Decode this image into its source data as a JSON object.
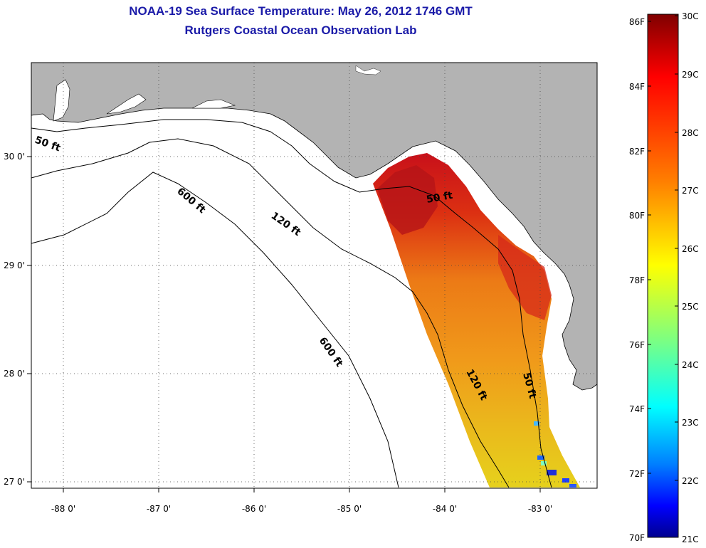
{
  "title": {
    "line1": "NOAA-19 Sea Surface Temperature:  May 26, 2012 1746 GMT",
    "line2": "Rutgers Coastal Ocean Observation Lab"
  },
  "map": {
    "lon_ticks": [
      "-88 0'",
      "-87 0'",
      "-86 0'",
      "-85 0'",
      "-84 0'",
      "-83 0'"
    ],
    "lat_ticks": [
      "30 0'",
      "29 0'",
      "28 0'",
      "27 0'"
    ],
    "contour_labels": {
      "c50_west": "50 ft",
      "c600_north": "600 ft",
      "c120_north": "120 ft",
      "c50_bigbend": "50 ft",
      "c600_south": "600 ft",
      "c120_south": "120 ft",
      "c50_south": "50 ft"
    },
    "colors": {
      "land": "#b3b3b3",
      "ocean": "#ffffff",
      "sst_red": "#d4140e",
      "sst_orange": "#ee7a16",
      "sst_yellow": "#e9d81a"
    }
  },
  "colorbar": {
    "f_labels": [
      "86F",
      "84F",
      "82F",
      "80F",
      "78F",
      "76F",
      "74F",
      "72F",
      "70F"
    ],
    "c_labels": [
      "30C",
      "29C",
      "28C",
      "27C",
      "26C",
      "25C",
      "24C",
      "23C",
      "22C",
      "21C"
    ],
    "gradient": [
      "#7f0000",
      "#ff0000",
      "#ff7f00",
      "#ffff00",
      "#7fff7f",
      "#00ffff",
      "#007fff",
      "#0000ff",
      "#00008f"
    ]
  }
}
